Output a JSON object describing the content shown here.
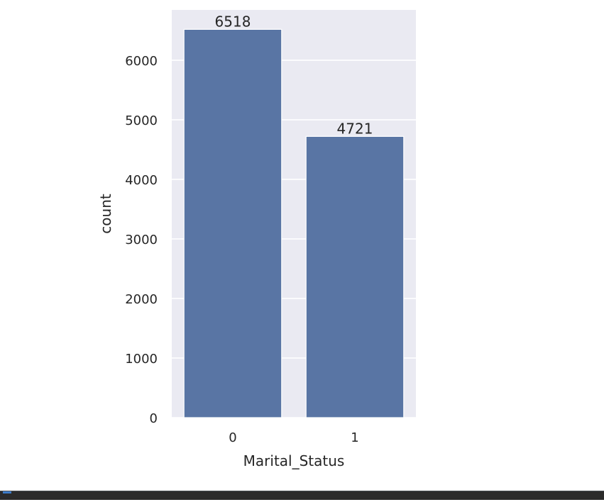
{
  "chart_data": {
    "type": "bar",
    "categories": [
      "0",
      "1"
    ],
    "values": [
      6518,
      4721
    ],
    "data_labels": [
      "6518",
      "4721"
    ],
    "title": "",
    "xlabel": "Marital_Status",
    "ylabel": "count",
    "ylim": [
      0,
      6844
    ],
    "yticks": [
      0,
      1000,
      2000,
      3000,
      4000,
      5000,
      6000
    ],
    "ytick_labels": [
      "0",
      "1000",
      "2000",
      "3000",
      "4000",
      "5000",
      "6000"
    ],
    "grid": true,
    "legend": "none",
    "colors": {
      "bar": "#5975a4",
      "plot_background": "#eaeaf2",
      "grid": "#ffffff",
      "text": "#262626"
    }
  }
}
